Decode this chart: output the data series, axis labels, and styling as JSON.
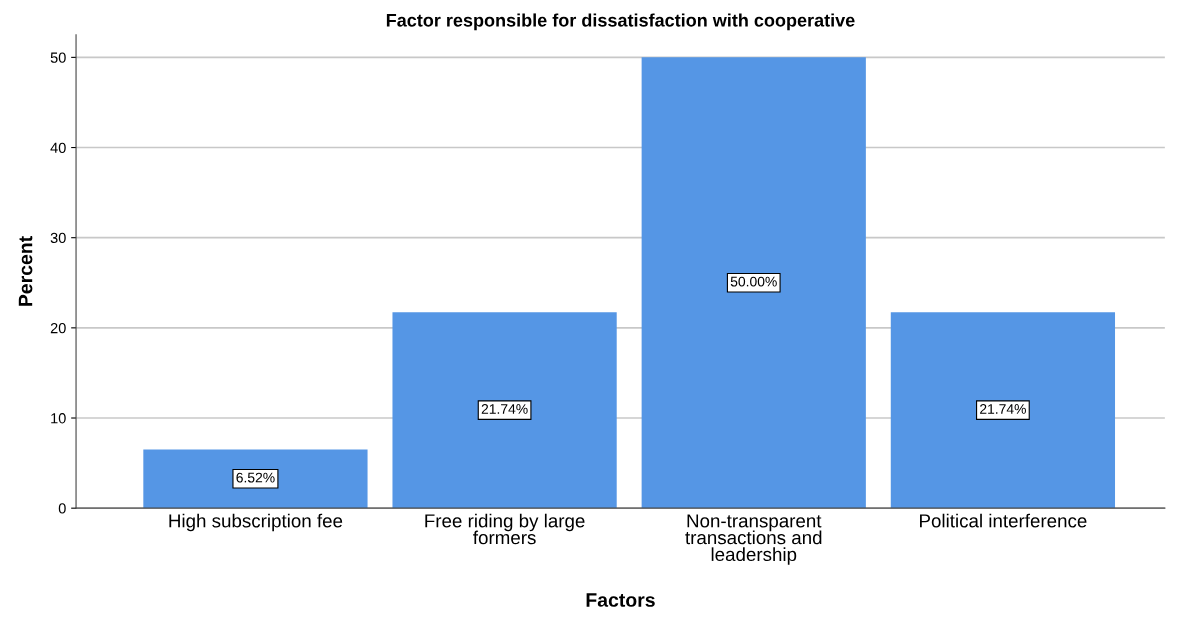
{
  "chart_data": {
    "type": "bar",
    "title": "Factor responsible for dissatisfaction with cooperative",
    "xlabel": "Factors",
    "ylabel": "Percent",
    "categories": [
      "High subscription fee",
      "Free riding by large\nformers",
      "Non-transparent\ntransactions and\nleadership",
      "Political interference"
    ],
    "values": [
      6.52,
      21.74,
      50.0,
      21.74
    ],
    "value_labels": [
      "6.52%",
      "21.74%",
      "50.00%",
      "21.74%"
    ],
    "color": "#5596e5",
    "ylim": [
      0,
      52.5
    ],
    "yticks": [
      0,
      10,
      20,
      30,
      40,
      50
    ],
    "grid": "y"
  }
}
